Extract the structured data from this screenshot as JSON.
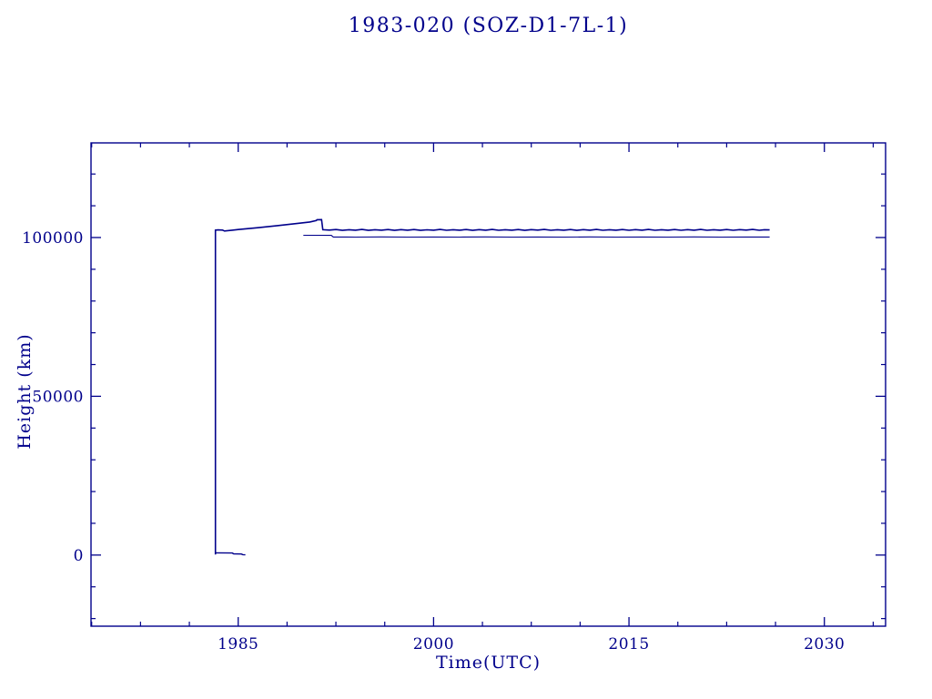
{
  "page": {
    "background": "#ffffff"
  },
  "chart_data": {
    "type": "line",
    "title": "1983-020 (SOZ-D1-7L-1)",
    "xlabel": "Time(UTC)",
    "ylabel": "Height (km)",
    "xlim": [
      1973.7,
      2034.7
    ],
    "ylim": [
      -22400,
      129800
    ],
    "x_major_ticks": [
      1985,
      2000,
      2015,
      2030
    ],
    "x_minor_step": 3.75,
    "y_major_ticks": [
      0,
      50000,
      100000
    ],
    "y_minor_step": 10000,
    "grid": false,
    "legend": "none",
    "axis_color": "#00008B",
    "line_color": "#00008B",
    "series": [
      {
        "name": "apogee_height",
        "style": "noisy-solid",
        "stroke_width": 1.6,
        "points": [
          [
            1983.25,
            150
          ],
          [
            1983.25,
            102300
          ],
          [
            1983.45,
            102400
          ],
          [
            1983.8,
            102350
          ],
          [
            1983.95,
            102050
          ],
          [
            1985.0,
            102500
          ],
          [
            1986.5,
            103100
          ],
          [
            1988.0,
            103750
          ],
          [
            1989.5,
            104400
          ],
          [
            1990.5,
            104900
          ],
          [
            1991.0,
            105350
          ],
          [
            1991.05,
            105600
          ],
          [
            1991.4,
            105650
          ],
          [
            1991.5,
            102450
          ],
          [
            1992.0,
            102350
          ],
          [
            1992.5,
            102500
          ],
          [
            1993.0,
            102250
          ],
          [
            1993.5,
            102450
          ],
          [
            1994.0,
            102300
          ],
          [
            1994.5,
            102550
          ],
          [
            1995.0,
            102250
          ],
          [
            1995.5,
            102450
          ],
          [
            1996.0,
            102300
          ],
          [
            1996.5,
            102500
          ],
          [
            1997.0,
            102250
          ],
          [
            1997.5,
            102480
          ],
          [
            1998.0,
            102320
          ],
          [
            1998.5,
            102520
          ],
          [
            1999.0,
            102260
          ],
          [
            1999.5,
            102440
          ],
          [
            2000.0,
            102300
          ],
          [
            2000.5,
            102530
          ],
          [
            2001.0,
            102270
          ],
          [
            2001.5,
            102460
          ],
          [
            2002.0,
            102310
          ],
          [
            2002.5,
            102510
          ],
          [
            2003.0,
            102260
          ],
          [
            2003.5,
            102470
          ],
          [
            2004.0,
            102320
          ],
          [
            2004.5,
            102540
          ],
          [
            2005.0,
            102270
          ],
          [
            2005.5,
            102450
          ],
          [
            2006.0,
            102310
          ],
          [
            2006.5,
            102520
          ],
          [
            2007.0,
            102260
          ],
          [
            2007.5,
            102480
          ],
          [
            2008.0,
            102330
          ],
          [
            2008.5,
            102530
          ],
          [
            2009.0,
            102270
          ],
          [
            2009.5,
            102460
          ],
          [
            2010.0,
            102310
          ],
          [
            2010.5,
            102510
          ],
          [
            2011.0,
            102260
          ],
          [
            2011.5,
            102470
          ],
          [
            2012.0,
            102320
          ],
          [
            2012.5,
            102540
          ],
          [
            2013.0,
            102280
          ],
          [
            2013.5,
            102460
          ],
          [
            2014.0,
            102310
          ],
          [
            2014.5,
            102520
          ],
          [
            2015.0,
            102270
          ],
          [
            2015.5,
            102480
          ],
          [
            2016.0,
            102320
          ],
          [
            2016.5,
            102530
          ],
          [
            2017.0,
            102270
          ],
          [
            2017.5,
            102460
          ],
          [
            2018.0,
            102310
          ],
          [
            2018.5,
            102510
          ],
          [
            2019.0,
            102270
          ],
          [
            2019.5,
            102470
          ],
          [
            2020.0,
            102320
          ],
          [
            2020.5,
            102540
          ],
          [
            2021.0,
            102280
          ],
          [
            2021.5,
            102460
          ],
          [
            2022.0,
            102310
          ],
          [
            2022.5,
            102520
          ],
          [
            2023.0,
            102270
          ],
          [
            2023.5,
            102480
          ],
          [
            2024.0,
            102330
          ],
          [
            2024.5,
            102530
          ],
          [
            2025.0,
            102280
          ],
          [
            2025.4,
            102450
          ],
          [
            2025.8,
            102400
          ]
        ]
      },
      {
        "name": "secondary_height",
        "style": "solid",
        "stroke_width": 1.1,
        "points": [
          [
            1990.0,
            100700
          ],
          [
            1992.15,
            100680
          ],
          [
            1992.3,
            100160
          ],
          [
            1994,
            100140
          ],
          [
            1996,
            100180
          ],
          [
            1998,
            100120
          ],
          [
            2000,
            100170
          ],
          [
            2002,
            100130
          ],
          [
            2004,
            100180
          ],
          [
            2006,
            100140
          ],
          [
            2008,
            100170
          ],
          [
            2010,
            100120
          ],
          [
            2012,
            100180
          ],
          [
            2014,
            100140
          ],
          [
            2016,
            100170
          ],
          [
            2018,
            100130
          ],
          [
            2020,
            100180
          ],
          [
            2022,
            100140
          ],
          [
            2024,
            100170
          ],
          [
            2025.8,
            100150
          ]
        ]
      },
      {
        "name": "perigee_decay",
        "style": "solid",
        "stroke_width": 1.4,
        "points": [
          [
            1983.25,
            700
          ],
          [
            1984.55,
            640
          ],
          [
            1984.65,
            380
          ],
          [
            1985.25,
            330
          ],
          [
            1985.35,
            120
          ],
          [
            1985.55,
            60
          ]
        ]
      }
    ]
  }
}
